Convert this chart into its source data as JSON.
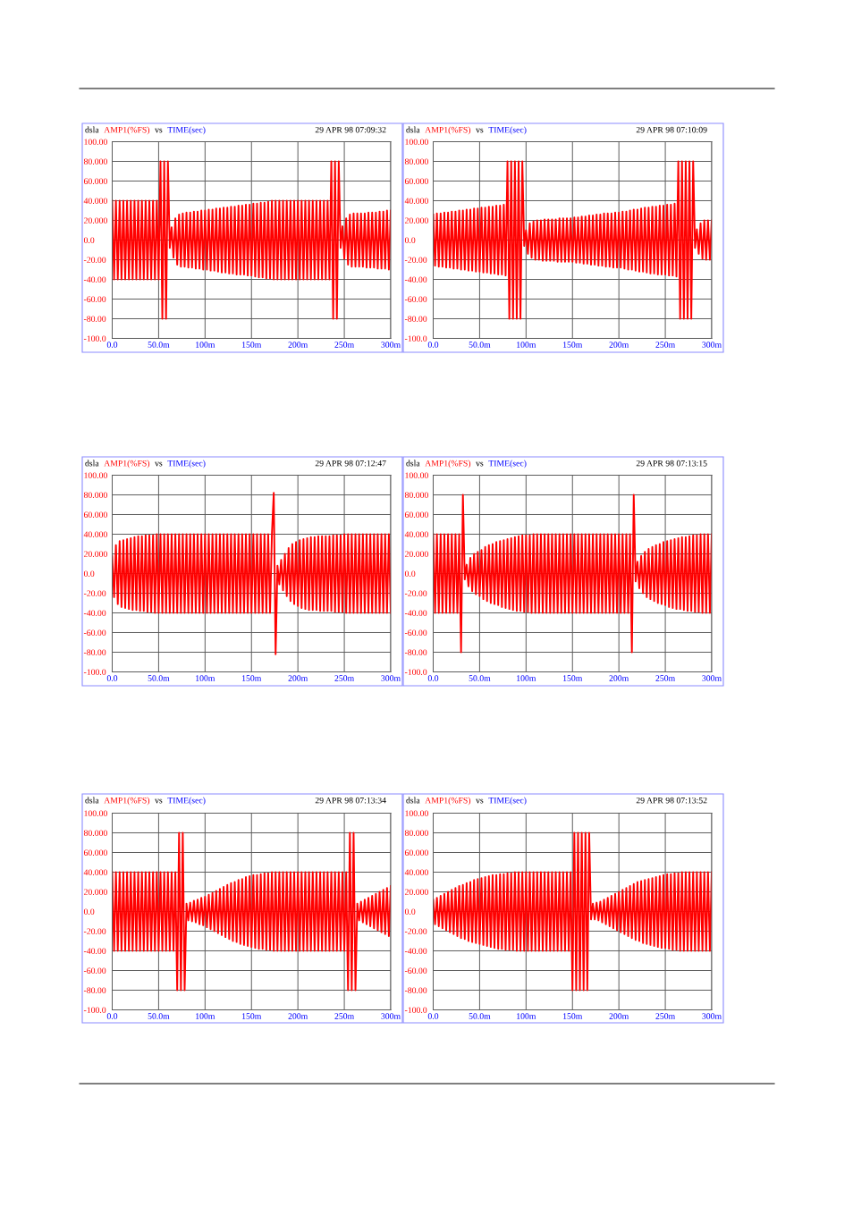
{
  "chart_data": [
    {
      "type": "line",
      "title": "dsla",
      "ylabel": "AMP1(%FS)",
      "xlabel": "TIME(sec)",
      "annotations": [
        "vs",
        "29 APR 98 07:09:32"
      ],
      "color": "#ff0000",
      "grid": true,
      "xlim": [
        0,
        300
      ],
      "ylim": [
        -100,
        100
      ],
      "xticks": [
        {
          "value": 0,
          "label": "0.0"
        },
        {
          "value": 50,
          "label": "50.0m"
        },
        {
          "value": 100,
          "label": "100m"
        },
        {
          "value": 150,
          "label": "150m"
        },
        {
          "value": 200,
          "label": "200m"
        },
        {
          "value": 250,
          "label": "250m"
        },
        {
          "value": 300,
          "label": "300m"
        }
      ],
      "yticks": [
        {
          "value": 100,
          "label": "100.00"
        },
        {
          "value": 80,
          "label": "80.000"
        },
        {
          "value": 60,
          "label": "60.000"
        },
        {
          "value": 40,
          "label": "40.000"
        },
        {
          "value": 20,
          "label": "20.000"
        },
        {
          "value": 0,
          "label": "0.0"
        },
        {
          "value": -20,
          "label": "-20.00"
        },
        {
          "value": -40,
          "label": "-40.00"
        },
        {
          "value": -60,
          "label": "-60.00"
        },
        {
          "value": -80,
          "label": "-80.00"
        },
        {
          "value": -100,
          "label": "-100.0"
        }
      ],
      "x": [
        0,
        2,
        4,
        6,
        8,
        10,
        12,
        14,
        16,
        18,
        20,
        22,
        24,
        26,
        28,
        30,
        32,
        34,
        36,
        38,
        40,
        42,
        44,
        46,
        48,
        50,
        52,
        54,
        56,
        58,
        60,
        62,
        64,
        66,
        68,
        70,
        72,
        74,
        76,
        78,
        80,
        82,
        84,
        86,
        88,
        90,
        92,
        94,
        96,
        98,
        100,
        102,
        104,
        106,
        108,
        110,
        112,
        114,
        116,
        118,
        120,
        122,
        124,
        126,
        128,
        130,
        132,
        134,
        136,
        138,
        140,
        142,
        144,
        146,
        148,
        150,
        152,
        154,
        156,
        158,
        160,
        162,
        164,
        166,
        168,
        170,
        172,
        174,
        176,
        178,
        180,
        182,
        184,
        186,
        188,
        190,
        192,
        194,
        196,
        198,
        200,
        202,
        204,
        206,
        208,
        210,
        212,
        214,
        216,
        218,
        220,
        222,
        224,
        226,
        228,
        230,
        232,
        234,
        236,
        238,
        240,
        242,
        244,
        246,
        248,
        250,
        252,
        254,
        256,
        258,
        260,
        262,
        264,
        266,
        268,
        270,
        272,
        274,
        276,
        278,
        280,
        282,
        284,
        286,
        288,
        290,
        292,
        294,
        296,
        298,
        300
      ],
      "values": [
        40,
        -40,
        40,
        -40,
        40,
        -40,
        40,
        -40,
        40,
        -40,
        40,
        -40,
        40,
        -40,
        40,
        -40,
        40,
        -40,
        40,
        -40,
        40,
        -40,
        40,
        -40,
        40,
        -40,
        80,
        -80,
        80,
        -80,
        80,
        -8,
        13,
        -18,
        22,
        -25,
        26,
        -27,
        27,
        -27,
        28,
        -28,
        28,
        -28,
        29,
        -29,
        29,
        -29,
        30,
        -30,
        30,
        -30,
        31,
        -31,
        31,
        -31,
        32,
        -32,
        32,
        -33,
        33,
        -33,
        33,
        -34,
        34,
        -34,
        34,
        -35,
        35,
        -35,
        35,
        -35,
        36,
        -36,
        36,
        -36,
        37,
        -37,
        37,
        -38,
        38,
        -38,
        38,
        -39,
        39,
        -39,
        40,
        -40,
        40,
        -40,
        40,
        -40,
        40,
        -40,
        40,
        -40,
        40,
        -40,
        40,
        -40,
        40,
        -40,
        40,
        -40,
        40,
        -40,
        40,
        -40,
        40,
        -40,
        40,
        -40,
        40,
        -40,
        40,
        -40,
        40,
        -40,
        80,
        -80,
        80,
        -80,
        80,
        -8,
        14,
        -19,
        22,
        -25,
        26,
        -27,
        27,
        -27,
        27,
        -27,
        27,
        -27,
        27,
        -28,
        28,
        -28,
        28,
        -28,
        28,
        -29,
        29,
        -29,
        29,
        -29,
        30,
        -30,
        30
      ]
    },
    {
      "type": "line",
      "title": "dsla",
      "ylabel": "AMP1(%FS)",
      "xlabel": "TIME(sec)",
      "annotations": [
        "vs",
        "29 APR 98 07:10:09"
      ],
      "color": "#ff0000",
      "grid": true,
      "xlim": [
        0,
        300
      ],
      "ylim": [
        -100,
        100
      ],
      "xticks": [
        {
          "value": 0,
          "label": "0.0"
        },
        {
          "value": 50,
          "label": "50.0m"
        },
        {
          "value": 100,
          "label": "100m"
        },
        {
          "value": 150,
          "label": "150m"
        },
        {
          "value": 200,
          "label": "200m"
        },
        {
          "value": 250,
          "label": "250m"
        },
        {
          "value": 300,
          "label": "300m"
        }
      ],
      "yticks": [
        {
          "value": 100,
          "label": "100.00"
        },
        {
          "value": 80,
          "label": "80.000"
        },
        {
          "value": 60,
          "label": "60.000"
        },
        {
          "value": 40,
          "label": "40.000"
        },
        {
          "value": 20,
          "label": "20.000"
        },
        {
          "value": 0,
          "label": "0.0"
        },
        {
          "value": -20,
          "label": "-20.00"
        },
        {
          "value": -40,
          "label": "-40.00"
        },
        {
          "value": -60,
          "label": "-60.00"
        },
        {
          "value": -80,
          "label": "-80.00"
        },
        {
          "value": -100,
          "label": "-100.0"
        }
      ],
      "x": [
        0,
        2,
        4,
        6,
        8,
        10,
        12,
        14,
        16,
        18,
        20,
        22,
        24,
        26,
        28,
        30,
        32,
        34,
        36,
        38,
        40,
        42,
        44,
        46,
        48,
        50,
        52,
        54,
        56,
        58,
        60,
        62,
        64,
        66,
        68,
        70,
        72,
        74,
        76,
        78,
        80,
        82,
        84,
        86,
        88,
        90,
        92,
        94,
        96,
        98,
        100,
        102,
        104,
        106,
        108,
        110,
        112,
        114,
        116,
        118,
        120,
        122,
        124,
        126,
        128,
        130,
        132,
        134,
        136,
        138,
        140,
        142,
        144,
        146,
        148,
        150,
        152,
        154,
        156,
        158,
        160,
        162,
        164,
        166,
        168,
        170,
        172,
        174,
        176,
        178,
        180,
        182,
        184,
        186,
        188,
        190,
        192,
        194,
        196,
        198,
        200,
        202,
        204,
        206,
        208,
        210,
        212,
        214,
        216,
        218,
        220,
        222,
        224,
        226,
        228,
        230,
        232,
        234,
        236,
        238,
        240,
        242,
        244,
        246,
        248,
        250,
        252,
        254,
        256,
        258,
        260,
        262,
        264,
        266,
        268,
        270,
        272,
        274,
        276,
        278,
        280,
        282,
        284,
        286,
        288,
        290,
        292,
        294,
        296,
        298,
        300
      ],
      "values": [
        26,
        -26,
        27,
        -27,
        27,
        -27,
        28,
        -28,
        28,
        -28,
        29,
        -29,
        29,
        -29,
        30,
        -30,
        30,
        -30,
        31,
        -31,
        31,
        -31,
        32,
        -32,
        32,
        -32,
        33,
        -33,
        33,
        -33,
        34,
        -34,
        34,
        -34,
        35,
        -35,
        35,
        -35,
        36,
        -36,
        80,
        -80,
        80,
        -80,
        80,
        -80,
        80,
        -80,
        80,
        -6,
        10,
        -14,
        17,
        -18,
        19,
        -20,
        20,
        -20,
        20,
        -21,
        21,
        -21,
        21,
        -21,
        21,
        -21,
        21,
        -22,
        22,
        -22,
        22,
        -22,
        22,
        -22,
        22,
        -22,
        23,
        -23,
        23,
        -23,
        24,
        -24,
        24,
        -24,
        25,
        -25,
        25,
        -25,
        26,
        -26,
        26,
        -26,
        27,
        -27,
        27,
        -27,
        27,
        -28,
        28,
        -28,
        28,
        -28,
        29,
        -29,
        29,
        -30,
        30,
        -30,
        31,
        -31,
        31,
        -32,
        32,
        -32,
        33,
        -33,
        33,
        -34,
        34,
        -34,
        34,
        -35,
        35,
        -35,
        35,
        -35,
        36,
        -36,
        36,
        -36,
        37,
        -37,
        80,
        -80,
        80,
        -80,
        80,
        -80,
        80,
        -80,
        80,
        -8,
        11,
        -14,
        17,
        -19,
        20,
        -20,
        20,
        -20,
        20
      ]
    },
    {
      "type": "line",
      "title": "dsla",
      "ylabel": "AMP1(%FS)",
      "xlabel": "TIME(sec)",
      "annotations": [
        "vs",
        "29 APR 98 07:12:47"
      ],
      "color": "#ff0000",
      "grid": true,
      "xlim": [
        0,
        300
      ],
      "ylim": [
        -100,
        100
      ],
      "xticks": [
        {
          "value": 0,
          "label": "0.0"
        },
        {
          "value": 50,
          "label": "50.0m"
        },
        {
          "value": 100,
          "label": "100m"
        },
        {
          "value": 150,
          "label": "150m"
        },
        {
          "value": 200,
          "label": "200m"
        },
        {
          "value": 250,
          "label": "250m"
        },
        {
          "value": 300,
          "label": "300m"
        }
      ],
      "yticks": [
        {
          "value": 100,
          "label": "100.00"
        },
        {
          "value": 80,
          "label": "80.000"
        },
        {
          "value": 60,
          "label": "60.000"
        },
        {
          "value": 40,
          "label": "40.000"
        },
        {
          "value": 20,
          "label": "20.000"
        },
        {
          "value": 0,
          "label": "0.0"
        },
        {
          "value": -20,
          "label": "-20.00"
        },
        {
          "value": -40,
          "label": "-40.00"
        },
        {
          "value": -60,
          "label": "-60.00"
        },
        {
          "value": -80,
          "label": "-80.00"
        },
        {
          "value": -100,
          "label": "-100.0"
        }
      ],
      "x": [
        0,
        2,
        4,
        6,
        8,
        10,
        12,
        14,
        16,
        18,
        20,
        22,
        24,
        26,
        28,
        30,
        32,
        34,
        36,
        38,
        40,
        42,
        44,
        46,
        48,
        50,
        52,
        54,
        56,
        58,
        60,
        62,
        64,
        66,
        68,
        70,
        72,
        74,
        76,
        78,
        80,
        82,
        84,
        86,
        88,
        90,
        92,
        94,
        96,
        98,
        100,
        102,
        104,
        106,
        108,
        110,
        112,
        114,
        116,
        118,
        120,
        122,
        124,
        126,
        128,
        130,
        132,
        134,
        136,
        138,
        140,
        142,
        144,
        146,
        148,
        150,
        152,
        154,
        156,
        158,
        160,
        162,
        164,
        166,
        168,
        170,
        172,
        174,
        176,
        178,
        180,
        182,
        184,
        186,
        188,
        190,
        192,
        194,
        196,
        198,
        200,
        202,
        204,
        206,
        208,
        210,
        212,
        214,
        216,
        218,
        220,
        222,
        224,
        226,
        228,
        230,
        232,
        234,
        236,
        238,
        240,
        242,
        244,
        246,
        248,
        250,
        252,
        254,
        256,
        258,
        260,
        262,
        264,
        266,
        268,
        270,
        272,
        274,
        276,
        278,
        280,
        282,
        284,
        286,
        288,
        290,
        292,
        294,
        296,
        298,
        300
      ],
      "values": [
        18,
        -24,
        29,
        -31,
        33,
        -34,
        34,
        -35,
        35,
        -36,
        36,
        -37,
        37,
        -37,
        38,
        -38,
        38,
        -38,
        39,
        -39,
        39,
        -39,
        39,
        -40,
        40,
        -40,
        40,
        -40,
        40,
        -40,
        40,
        -40,
        40,
        -40,
        40,
        -40,
        40,
        -40,
        40,
        -40,
        40,
        -40,
        40,
        -40,
        40,
        -40,
        40,
        -40,
        40,
        -40,
        40,
        -40,
        40,
        -40,
        40,
        -40,
        40,
        -40,
        40,
        -40,
        40,
        -40,
        40,
        -40,
        40,
        -40,
        40,
        -40,
        40,
        -40,
        40,
        -40,
        40,
        -40,
        40,
        -40,
        40,
        -40,
        40,
        -40,
        40,
        -40,
        40,
        -40,
        40,
        -40,
        40,
        82,
        -82,
        8,
        -11,
        14,
        -17,
        20,
        -23,
        26,
        -28,
        30,
        -31,
        32,
        -33,
        34,
        -35,
        35,
        -36,
        36,
        -37,
        37,
        -37,
        37,
        -37,
        38,
        -38,
        38,
        -38,
        38,
        -38,
        38,
        -38,
        39,
        -39,
        39,
        -39,
        39,
        -39,
        40,
        -40,
        40,
        -40,
        40,
        -40,
        40,
        -40,
        40,
        -40,
        40,
        -40,
        40,
        -40,
        40,
        -40,
        40,
        -40,
        40,
        -40,
        40,
        -40,
        40,
        -40,
        40,
        -40
      ]
    },
    {
      "type": "line",
      "title": "dsla",
      "ylabel": "AMP1(%FS)",
      "xlabel": "TIME(sec)",
      "annotations": [
        "vs",
        "29 APR 98 07:13:15"
      ],
      "color": "#ff0000",
      "grid": true,
      "xlim": [
        0,
        300
      ],
      "ylim": [
        -100,
        100
      ],
      "xticks": [
        {
          "value": 0,
          "label": "0.0"
        },
        {
          "value": 50,
          "label": "50.0m"
        },
        {
          "value": 100,
          "label": "100m"
        },
        {
          "value": 150,
          "label": "150m"
        },
        {
          "value": 200,
          "label": "200m"
        },
        {
          "value": 250,
          "label": "250m"
        },
        {
          "value": 300,
          "label": "300m"
        }
      ],
      "yticks": [
        {
          "value": 100,
          "label": "100.00"
        },
        {
          "value": 80,
          "label": "80.000"
        },
        {
          "value": 60,
          "label": "60.000"
        },
        {
          "value": 40,
          "label": "40.000"
        },
        {
          "value": 20,
          "label": "20.000"
        },
        {
          "value": 0,
          "label": "0.0"
        },
        {
          "value": -20,
          "label": "-20.00"
        },
        {
          "value": -40,
          "label": "-40.00"
        },
        {
          "value": -60,
          "label": "-60.00"
        },
        {
          "value": -80,
          "label": "-80.00"
        },
        {
          "value": -100,
          "label": "-100.0"
        }
      ],
      "x": [
        0,
        2,
        4,
        6,
        8,
        10,
        12,
        14,
        16,
        18,
        20,
        22,
        24,
        26,
        28,
        30,
        32,
        34,
        36,
        38,
        40,
        42,
        44,
        46,
        48,
        50,
        52,
        54,
        56,
        58,
        60,
        62,
        64,
        66,
        68,
        70,
        72,
        74,
        76,
        78,
        80,
        82,
        84,
        86,
        88,
        90,
        92,
        94,
        96,
        98,
        100,
        102,
        104,
        106,
        108,
        110,
        112,
        114,
        116,
        118,
        120,
        122,
        124,
        126,
        128,
        130,
        132,
        134,
        136,
        138,
        140,
        142,
        144,
        146,
        148,
        150,
        152,
        154,
        156,
        158,
        160,
        162,
        164,
        166,
        168,
        170,
        172,
        174,
        176,
        178,
        180,
        182,
        184,
        186,
        188,
        190,
        192,
        194,
        196,
        198,
        200,
        202,
        204,
        206,
        208,
        210,
        212,
        214,
        216,
        218,
        220,
        222,
        224,
        226,
        228,
        230,
        232,
        234,
        236,
        238,
        240,
        242,
        244,
        246,
        248,
        250,
        252,
        254,
        256,
        258,
        260,
        262,
        264,
        266,
        268,
        270,
        272,
        274,
        276,
        278,
        280,
        282,
        284,
        286,
        288,
        290,
        292,
        294,
        296,
        298,
        300
      ],
      "values": [
        40,
        -40,
        40,
        -40,
        40,
        -40,
        40,
        -40,
        40,
        -40,
        40,
        -40,
        40,
        -40,
        40,
        -80,
        80,
        -6,
        9,
        -13,
        16,
        -18,
        20,
        -21,
        22,
        -23,
        24,
        -26,
        27,
        -28,
        29,
        -30,
        30,
        -31,
        32,
        -32,
        33,
        -34,
        34,
        -35,
        35,
        -36,
        36,
        -37,
        37,
        -38,
        38,
        -38,
        39,
        -39,
        39,
        -39,
        39,
        -40,
        40,
        -40,
        40,
        -40,
        40,
        -40,
        40,
        -40,
        40,
        -40,
        40,
        -40,
        40,
        -40,
        40,
        -40,
        40,
        -40,
        40,
        -40,
        40,
        -40,
        40,
        -40,
        40,
        -40,
        40,
        -40,
        40,
        -40,
        40,
        -40,
        40,
        -40,
        40,
        -40,
        40,
        -40,
        40,
        -40,
        40,
        -40,
        40,
        -40,
        40,
        -40,
        40,
        -40,
        40,
        -40,
        40,
        -40,
        40,
        -80,
        80,
        -8,
        12,
        -15,
        18,
        -20,
        22,
        -24,
        25,
        -26,
        27,
        -28,
        29,
        -30,
        30,
        -31,
        32,
        -32,
        33,
        -34,
        34,
        -35,
        35,
        -36,
        36,
        -36,
        37,
        -37,
        37,
        -38,
        38,
        -38,
        39,
        -39,
        39,
        -39,
        40,
        -40,
        40,
        -40,
        40,
        -40,
        40
      ]
    },
    {
      "type": "line",
      "title": "dsla",
      "ylabel": "AMP1(%FS)",
      "xlabel": "TIME(sec)",
      "annotations": [
        "vs",
        "29 APR 98 07:13:34"
      ],
      "color": "#ff0000",
      "grid": true,
      "xlim": [
        0,
        300
      ],
      "ylim": [
        -100,
        100
      ],
      "xticks": [
        {
          "value": 0,
          "label": "0.0"
        },
        {
          "value": 50,
          "label": "50.0m"
        },
        {
          "value": 100,
          "label": "100m"
        },
        {
          "value": 150,
          "label": "150m"
        },
        {
          "value": 200,
          "label": "200m"
        },
        {
          "value": 250,
          "label": "250m"
        },
        {
          "value": 300,
          "label": "300m"
        }
      ],
      "yticks": [
        {
          "value": 100,
          "label": "100.00"
        },
        {
          "value": 80,
          "label": "80.000"
        },
        {
          "value": 60,
          "label": "60.000"
        },
        {
          "value": 40,
          "label": "40.000"
        },
        {
          "value": 20,
          "label": "20.000"
        },
        {
          "value": 0,
          "label": "0.0"
        },
        {
          "value": -20,
          "label": "-20.00"
        },
        {
          "value": -40,
          "label": "-40.00"
        },
        {
          "value": -60,
          "label": "-60.00"
        },
        {
          "value": -80,
          "label": "-80.00"
        },
        {
          "value": -100,
          "label": "-100.0"
        }
      ],
      "x": [
        0,
        2,
        4,
        6,
        8,
        10,
        12,
        14,
        16,
        18,
        20,
        22,
        24,
        26,
        28,
        30,
        32,
        34,
        36,
        38,
        40,
        42,
        44,
        46,
        48,
        50,
        52,
        54,
        56,
        58,
        60,
        62,
        64,
        66,
        68,
        70,
        72,
        74,
        76,
        78,
        80,
        82,
        84,
        86,
        88,
        90,
        92,
        94,
        96,
        98,
        100,
        102,
        104,
        106,
        108,
        110,
        112,
        114,
        116,
        118,
        120,
        122,
        124,
        126,
        128,
        130,
        132,
        134,
        136,
        138,
        140,
        142,
        144,
        146,
        148,
        150,
        152,
        154,
        156,
        158,
        160,
        162,
        164,
        166,
        168,
        170,
        172,
        174,
        176,
        178,
        180,
        182,
        184,
        186,
        188,
        190,
        192,
        194,
        196,
        198,
        200,
        202,
        204,
        206,
        208,
        210,
        212,
        214,
        216,
        218,
        220,
        222,
        224,
        226,
        228,
        230,
        232,
        234,
        236,
        238,
        240,
        242,
        244,
        246,
        248,
        250,
        252,
        254,
        256,
        258,
        260,
        262,
        264,
        266,
        268,
        270,
        272,
        274,
        276,
        278,
        280,
        282,
        284,
        286,
        288,
        290,
        292,
        294,
        296,
        298,
        300
      ],
      "values": [
        40,
        -40,
        40,
        -40,
        40,
        -40,
        40,
        -40,
        40,
        -40,
        40,
        -40,
        40,
        -40,
        40,
        -40,
        40,
        -40,
        40,
        -40,
        40,
        -40,
        40,
        -40,
        40,
        -40,
        40,
        -40,
        40,
        -40,
        40,
        -40,
        40,
        -40,
        40,
        -80,
        80,
        -80,
        80,
        -80,
        8,
        -9,
        9,
        -10,
        11,
        -11,
        12,
        -13,
        14,
        -14,
        15,
        -16,
        17,
        -18,
        19,
        -20,
        21,
        -22,
        23,
        -24,
        25,
        -26,
        27,
        -28,
        29,
        -30,
        30,
        -31,
        32,
        -33,
        33,
        -34,
        35,
        -35,
        36,
        -36,
        37,
        -37,
        37,
        -38,
        38,
        -38,
        39,
        -39,
        39,
        -39,
        40,
        -40,
        40,
        -40,
        40,
        -40,
        40,
        -40,
        40,
        -40,
        40,
        -40,
        40,
        -40,
        40,
        -40,
        40,
        -40,
        40,
        -40,
        40,
        -40,
        40,
        -40,
        40,
        -40,
        40,
        -40,
        40,
        -40,
        40,
        -40,
        40,
        -40,
        40,
        -40,
        40,
        -40,
        40,
        -40,
        40,
        -80,
        80,
        -80,
        80,
        -80,
        8,
        -9,
        10,
        -11,
        12,
        -13,
        14,
        -15,
        16,
        -17,
        18,
        -19,
        20,
        -21,
        22,
        -23,
        24,
        -25,
        26
      ]
    },
    {
      "type": "line",
      "title": "dsla",
      "ylabel": "AMP1(%FS)",
      "xlabel": "TIME(sec)",
      "annotations": [
        "vs",
        "29 APR 98 07:13:52"
      ],
      "color": "#ff0000",
      "grid": true,
      "xlim": [
        0,
        300
      ],
      "ylim": [
        -100,
        100
      ],
      "xticks": [
        {
          "value": 0,
          "label": "0.0"
        },
        {
          "value": 50,
          "label": "50.0m"
        },
        {
          "value": 100,
          "label": "100m"
        },
        {
          "value": 150,
          "label": "150m"
        },
        {
          "value": 200,
          "label": "200m"
        },
        {
          "value": 250,
          "label": "250m"
        },
        {
          "value": 300,
          "label": "300m"
        }
      ],
      "yticks": [
        {
          "value": 100,
          "label": "100.00"
        },
        {
          "value": 80,
          "label": "80.000"
        },
        {
          "value": 60,
          "label": "60.000"
        },
        {
          "value": 40,
          "label": "40.000"
        },
        {
          "value": 20,
          "label": "20.000"
        },
        {
          "value": 0,
          "label": "0.0"
        },
        {
          "value": -20,
          "label": "-20.00"
        },
        {
          "value": -40,
          "label": "-40.00"
        },
        {
          "value": -60,
          "label": "-60.00"
        },
        {
          "value": -80,
          "label": "-80.00"
        },
        {
          "value": -100,
          "label": "-100.0"
        }
      ],
      "x": [
        0,
        2,
        4,
        6,
        8,
        10,
        12,
        14,
        16,
        18,
        20,
        22,
        24,
        26,
        28,
        30,
        32,
        34,
        36,
        38,
        40,
        42,
        44,
        46,
        48,
        50,
        52,
        54,
        56,
        58,
        60,
        62,
        64,
        66,
        68,
        70,
        72,
        74,
        76,
        78,
        80,
        82,
        84,
        86,
        88,
        90,
        92,
        94,
        96,
        98,
        100,
        102,
        104,
        106,
        108,
        110,
        112,
        114,
        116,
        118,
        120,
        122,
        124,
        126,
        128,
        130,
        132,
        134,
        136,
        138,
        140,
        142,
        144,
        146,
        148,
        150,
        152,
        154,
        156,
        158,
        160,
        162,
        164,
        166,
        168,
        170,
        172,
        174,
        176,
        178,
        180,
        182,
        184,
        186,
        188,
        190,
        192,
        194,
        196,
        198,
        200,
        202,
        204,
        206,
        208,
        210,
        212,
        214,
        216,
        218,
        220,
        222,
        224,
        226,
        228,
        230,
        232,
        234,
        236,
        238,
        240,
        242,
        244,
        246,
        248,
        250,
        252,
        254,
        256,
        258,
        260,
        262,
        264,
        266,
        268,
        270,
        272,
        274,
        276,
        278,
        280,
        282,
        284,
        286,
        288,
        290,
        292,
        294,
        296,
        298,
        300
      ],
      "values": [
        12,
        -13,
        14,
        -15,
        16,
        -17,
        18,
        -19,
        20,
        -21,
        22,
        -23,
        24,
        -25,
        26,
        -27,
        27,
        -28,
        29,
        -30,
        30,
        -31,
        32,
        -32,
        33,
        -33,
        34,
        -34,
        35,
        -35,
        36,
        -36,
        37,
        -37,
        37,
        -38,
        38,
        -38,
        38,
        -39,
        39,
        -39,
        39,
        -39,
        40,
        -40,
        40,
        -40,
        40,
        -40,
        40,
        -40,
        40,
        -40,
        40,
        -40,
        40,
        -40,
        40,
        -40,
        40,
        -40,
        40,
        -40,
        40,
        -40,
        40,
        -40,
        40,
        -40,
        40,
        -40,
        40,
        -40,
        40,
        -80,
        80,
        -80,
        80,
        -80,
        80,
        -80,
        80,
        -80,
        80,
        -8,
        8,
        -8,
        9,
        -9,
        10,
        -11,
        12,
        -13,
        14,
        -15,
        16,
        -17,
        18,
        -19,
        20,
        -21,
        22,
        -23,
        24,
        -25,
        26,
        -27,
        28,
        -29,
        30,
        -30,
        31,
        -32,
        32,
        -33,
        33,
        -34,
        34,
        -35,
        35,
        -36,
        36,
        -37,
        37,
        -37,
        38,
        -38,
        38,
        -39,
        39,
        -39,
        39,
        -40,
        40,
        -40,
        40,
        -40,
        40,
        -40,
        40,
        -40,
        40,
        -40,
        40,
        -40,
        40,
        -40,
        40,
        -40,
        40
      ]
    }
  ]
}
